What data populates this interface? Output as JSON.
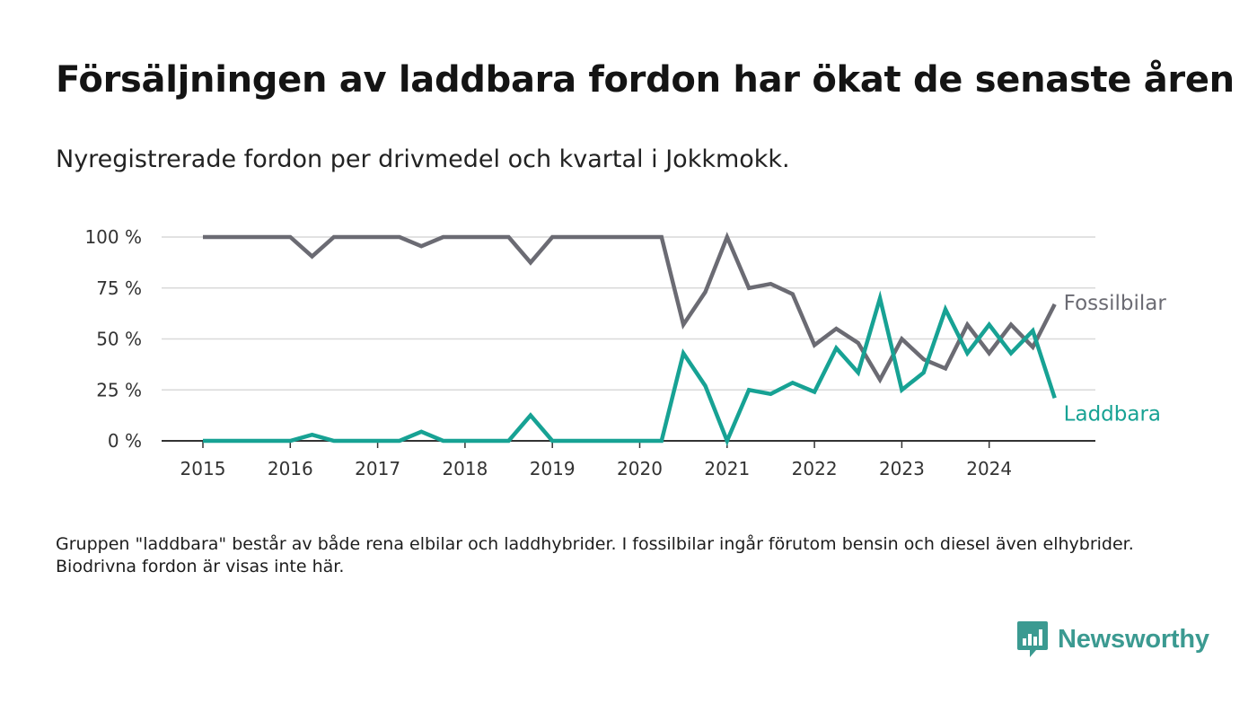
{
  "title": "Försäljningen av laddbara fordon har ökat de senaste åren",
  "subtitle": "Nyregistrerade fordon per drivmedel och kvartal i Jokkmokk.",
  "note": "Gruppen \"laddbara\" består av både rena elbilar och laddhybrider. I fossilbilar ingår förutom bensin och diesel även elhybrider. Biodrivna fordon är visas inte här.",
  "brand": {
    "name": "Newsworthy",
    "icon": "newsworthy-logo-icon",
    "color": "#3b9a91"
  },
  "chart_data": {
    "type": "line",
    "title": "Försäljningen av laddbara fordon har ökat de senaste åren",
    "subtitle": "Nyregistrerade fordon per drivmedel och kvartal i Jokkmokk.",
    "xlabel": "",
    "ylabel": "",
    "x_range": [
      2015,
      2025
    ],
    "ylim": [
      0,
      100
    ],
    "x_ticks": [
      "2015",
      "2016",
      "2017",
      "2018",
      "2019",
      "2020",
      "2021",
      "2022",
      "2023",
      "2024"
    ],
    "y_ticks": [
      "0 %",
      "25 %",
      "50 %",
      "75 %",
      "100 %"
    ],
    "grid": true,
    "legend": "direct labels at line ends",
    "x": [
      2015.0,
      2015.25,
      2015.5,
      2015.75,
      2016.0,
      2016.25,
      2016.5,
      2016.75,
      2017.0,
      2017.25,
      2017.5,
      2017.75,
      2018.0,
      2018.25,
      2018.5,
      2018.75,
      2019.0,
      2019.25,
      2019.5,
      2019.75,
      2020.0,
      2020.25,
      2020.5,
      2020.75,
      2021.0,
      2021.25,
      2021.5,
      2021.75,
      2022.0,
      2022.25,
      2022.5,
      2022.75,
      2023.0,
      2023.25,
      2023.5,
      2023.75,
      2024.0,
      2024.25,
      2024.5,
      2024.75
    ],
    "series": [
      {
        "name": "Fossilbilar",
        "color": "#6b6b73",
        "values": [
          100,
          100,
          100,
          100,
          100,
          90.5,
          100,
          100,
          100,
          100,
          95.5,
          100,
          100,
          100,
          100,
          87.5,
          100,
          100,
          100,
          100,
          100,
          100,
          57,
          73,
          100,
          75,
          77,
          72,
          47,
          55,
          48,
          30,
          50,
          40,
          35.5,
          57,
          43,
          57,
          46,
          67
        ]
      },
      {
        "name": "Laddbara",
        "color": "#17a294",
        "values": [
          0,
          0,
          0,
          0,
          0,
          3,
          0,
          0,
          0,
          0,
          4.5,
          0,
          0,
          0,
          0,
          12.5,
          0,
          0,
          0,
          0,
          0,
          0,
          43,
          27,
          0,
          25,
          23,
          28.5,
          24,
          45.5,
          33.5,
          70,
          25,
          33.5,
          64.5,
          43,
          57,
          43,
          54,
          21
        ]
      }
    ]
  }
}
